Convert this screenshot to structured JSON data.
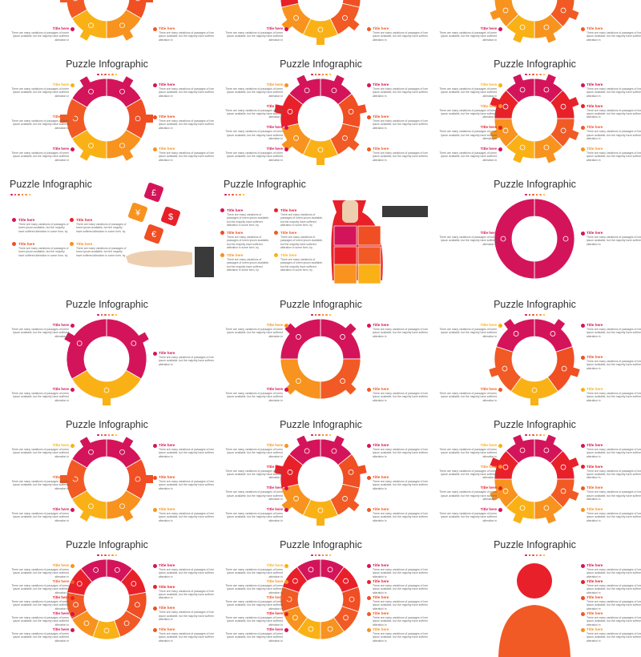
{
  "title": "Puzzle Infographic",
  "item_title": "Title here",
  "item_text": "There are many variations of passages of lorem ipsum available, but the majority have suffered alteration in",
  "item_text_long": "There are many variations of passages of lorem ipsum available, but the majority have suffered alteration in some form, by",
  "colors": [
    "#d4145a",
    "#e8202a",
    "#f04e23",
    "#f7931e",
    "#f9b115",
    "#f15a24"
  ],
  "hand_symbols": [
    "£",
    "¥",
    "$",
    "€"
  ],
  "slides": [
    {
      "type": "ring",
      "n": 6,
      "left": 2,
      "right": 2,
      "clip": true
    },
    {
      "type": "ring",
      "n": 7,
      "left": 2,
      "right": 2,
      "clip": true
    },
    {
      "type": "ring",
      "n": 8,
      "left": 2,
      "right": 2,
      "clip": true
    },
    {
      "type": "ring",
      "n": 6,
      "left": 3,
      "right": 3
    },
    {
      "type": "ring",
      "n": 7,
      "left": 4,
      "right": 3
    },
    {
      "type": "ring",
      "n": 8,
      "left": 4,
      "right": 4
    },
    {
      "type": "hand",
      "n": 4
    },
    {
      "type": "bag",
      "n": 6
    },
    {
      "type": "ring",
      "n": 2,
      "left": 1,
      "right": 1
    },
    {
      "type": "ring",
      "n": 3,
      "left": 2,
      "right": 1
    },
    {
      "type": "ring",
      "n": 4,
      "left": 2,
      "right": 2
    },
    {
      "type": "ring",
      "n": 5,
      "left": 2,
      "right": 3
    },
    {
      "type": "ring",
      "n": 6,
      "left": 3,
      "right": 3
    },
    {
      "type": "ring",
      "n": 7,
      "left": 4,
      "right": 3
    },
    {
      "type": "ring",
      "n": 8,
      "left": 4,
      "right": 4
    },
    {
      "type": "ring",
      "n": 9,
      "left": 5,
      "right": 4
    },
    {
      "type": "ring",
      "n": 10,
      "left": 5,
      "right": 5
    },
    {
      "type": "person",
      "n": 5,
      "left": 0,
      "right": 5
    }
  ]
}
